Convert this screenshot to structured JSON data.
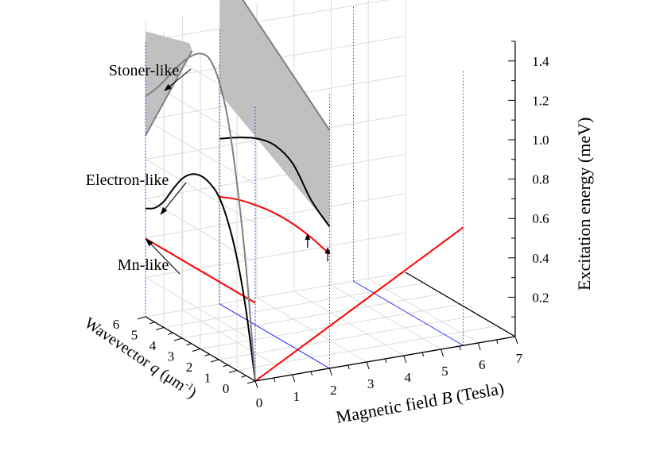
{
  "chart_data": {
    "type": "surface-3d",
    "title": "",
    "xlabel": "Magnetic field B (Tesla)",
    "xlabel_parts": {
      "pre": "Magnetic field ",
      "var": "B",
      "post": " (Tesla)"
    },
    "ylabel": "Wavevector q (μm⁻¹)",
    "ylabel_parts": {
      "pre": "Wavevector ",
      "var": "q",
      "post": " (μm",
      "sup": "-1",
      "close": ")"
    },
    "zlabel": "Excitation energy (meV)",
    "xlim": [
      0,
      7
    ],
    "ylim": [
      0,
      6
    ],
    "zlim": [
      0,
      1.5
    ],
    "x_ticks": [
      "0",
      "1",
      "2",
      "3",
      "4",
      "5",
      "6",
      "7"
    ],
    "y_ticks": [
      "0",
      "1",
      "2",
      "3",
      "4",
      "5",
      "6"
    ],
    "z_ticks": [
      "0.2",
      "0.4",
      "0.6",
      "0.8",
      "1.0",
      "1.2",
      "1.4"
    ],
    "grid": true,
    "annotations": [
      {
        "text": "Stoner-like",
        "target": "stoner-continuum"
      },
      {
        "text": "Electron-like",
        "target": "electron-like-mode"
      },
      {
        "text": "Mn-like",
        "target": "mn-like-mode"
      }
    ],
    "slices": [
      {
        "B": 0,
        "q_range": [
          0,
          6
        ]
      },
      {
        "B": 2,
        "q_range": [
          0,
          6
        ]
      },
      {
        "B": 5.6,
        "q_range": [
          0,
          6
        ]
      }
    ],
    "series": [
      {
        "name": "Mn-like",
        "color": "#ff0000",
        "segments": [
          {
            "B": [
              0,
              0
            ],
            "q": [
              6,
              0
            ],
            "E": [
              0.397,
              0.397
            ]
          },
          {
            "B": [
              0,
              5.6
            ],
            "q": [
              0,
              0
            ],
            "E": [
              0.0,
              0.6
            ]
          },
          {
            "B": [
              2,
              2,
              2,
              2,
              2,
              2,
              2
            ],
            "q": [
              6,
              5,
              4,
              3,
              2,
              1,
              0
            ],
            "E": [
              0.545,
              0.585,
              0.61,
              0.625,
              0.625,
              0.61,
              0.58
            ]
          }
        ]
      },
      {
        "name": "Electron-like",
        "color": "#000000",
        "segments": [
          {
            "B": [
              0,
              0,
              0,
              0,
              0,
              0,
              0,
              0,
              0,
              0,
              0,
              0,
              0
            ],
            "q": [
              0,
              0.5,
              1,
              1.5,
              2,
              2.5,
              3,
              3.5,
              4,
              4.5,
              5,
              5.5,
              6
            ],
            "E": [
              0.0,
              0.33,
              0.57,
              0.73,
              0.83,
              0.87,
              0.88,
              0.86,
              0.81,
              0.73,
              0.64,
              0.58,
              0.55
            ]
          },
          {
            "B": [
              2,
              2,
              2,
              2,
              2,
              2,
              2
            ],
            "q": [
              6,
              5,
              4,
              3,
              2,
              1,
              0
            ],
            "E": [
              0.84,
              0.9,
              0.95,
              0.97,
              0.93,
              0.8,
              0.72
            ]
          }
        ]
      },
      {
        "name": "Stoner-like",
        "color": "#808080",
        "fill": "#c0c0c0",
        "segments": [
          {
            "B": [
              0,
              0,
              0,
              0,
              0,
              0,
              0,
              0,
              0,
              0,
              0,
              0,
              0
            ],
            "q": [
              0,
              0.5,
              1,
              1.5,
              2,
              2.5,
              3,
              3.5,
              4,
              4.5,
              5,
              5.5,
              6
            ],
            "E": [
              0.0,
              0.55,
              0.95,
              1.25,
              1.42,
              1.5,
              1.5,
              1.46,
              1.4,
              1.33,
              1.25,
              1.18,
              1.12
            ]
          }
        ],
        "region_edges": [
          {
            "B": 2,
            "E_upper_q6": 1.72,
            "E_upper_q0": 1.21,
            "E_lower_q6": 1.07,
            "E_lower_q0": 0.72
          }
        ]
      }
    ],
    "markers": [
      {
        "type": "arrow",
        "B": 2,
        "q": 1.2,
        "E": 0.62
      },
      {
        "type": "arrow",
        "B": 2,
        "q": 0.1,
        "E": 0.61
      }
    ],
    "colors": {
      "mn_like": "#ff0000",
      "electron_like": "#000000",
      "stoner_fill": "#c0c0c0",
      "stoner_edge": "#808080",
      "grid": "#dcdcdc",
      "slice_guides": "#0000ff"
    }
  }
}
